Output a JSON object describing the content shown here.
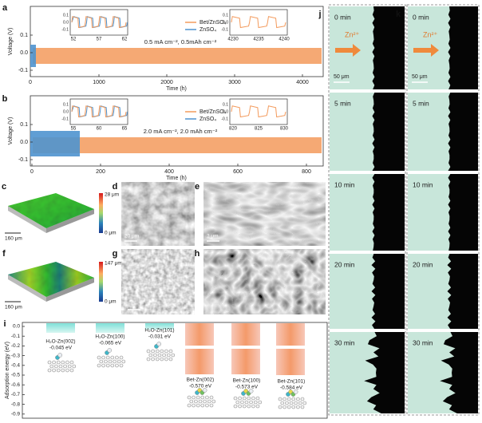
{
  "panels": {
    "a": {
      "label": "a",
      "ylabel": "Voltage (V)",
      "xlabel": "Time (h)",
      "yticks": [
        "0.1",
        "0.0",
        "-0.1"
      ],
      "xticks": [
        "0",
        "1000",
        "2000",
        "3000",
        "4000"
      ],
      "legend": [
        "Bet/ZnSO₄",
        "ZnSO₄"
      ],
      "condition": "0.5 mA cm⁻², 0.5mAh cm⁻²",
      "inset_left": {
        "xticks": [
          "52",
          "57",
          "62"
        ],
        "yticks": [
          "0.1",
          "0.0",
          "-0.1"
        ]
      },
      "inset_right": {
        "xticks": [
          "4230",
          "4235",
          "4240"
        ],
        "yticks": [
          "0.1",
          "0.0",
          "-0.1"
        ]
      }
    },
    "b": {
      "label": "b",
      "ylabel": "Voltage (V)",
      "xlabel": "Time (h)",
      "yticks": [
        "0.1",
        "0.0",
        "-0.1"
      ],
      "xticks": [
        "0",
        "200",
        "400",
        "600",
        "800"
      ],
      "legend": [
        "Bet/ZnSO₄",
        "ZnSO₄"
      ],
      "condition": "2.0 mA cm⁻², 2.0 mAh cm⁻²",
      "inset_left": {
        "xticks": [
          "55",
          "60",
          "65"
        ],
        "yticks": [
          "0.1",
          "0.0",
          "-0.1"
        ]
      },
      "inset_right": {
        "xticks": [
          "820",
          "825",
          "830"
        ],
        "yticks": [
          "0.1",
          "0.0",
          "-0.1"
        ]
      }
    },
    "c": {
      "label": "c",
      "max": "28 μm",
      "min": "0 μm",
      "scale": "160 μm"
    },
    "d": {
      "label": "d",
      "scale": "20 μm"
    },
    "e": {
      "label": "e",
      "scale": "2 μm"
    },
    "f": {
      "label": "f",
      "max": "147 μm",
      "min": "0 μm",
      "scale": "160 μm"
    },
    "g": {
      "label": "g"
    },
    "h": {
      "label": "h"
    },
    "i": {
      "label": "i",
      "ylabel": "Adsorption energy (eV)",
      "yticks": [
        "0.0",
        "-0.1",
        "-0.2",
        "-0.3",
        "-0.4",
        "-0.5",
        "-0.6",
        "-0.7",
        "-0.8",
        "-0.9"
      ],
      "items": [
        {
          "name": "H₂O-Zn(002)",
          "energy": "-0.045 eV"
        },
        {
          "name": "H₂O-Zn(100)",
          "energy": "-0.065 eV"
        },
        {
          "name": "H₂O-Zn(101)",
          "energy": "-0.031 eV"
        },
        {
          "name": "Bet-Zn(002)",
          "energy": "-0.570 eV"
        },
        {
          "name": "Bet-Zn(100)",
          "energy": "-0.573 eV"
        },
        {
          "name": "Bet-Zn(101)",
          "energy": "-0.584 eV"
        }
      ]
    },
    "j": {
      "label": "j",
      "times": [
        "0 min",
        "5 min",
        "10 min",
        "20 min",
        "30 min"
      ],
      "ion": "Zn²⁺",
      "scale": "50 μm"
    },
    "k": {
      "label": "k",
      "times": [
        "0 min",
        "5 min",
        "10 min",
        "20 min",
        "30 min"
      ],
      "ion": "Zn²⁺",
      "scale": "50 μm"
    }
  }
}
